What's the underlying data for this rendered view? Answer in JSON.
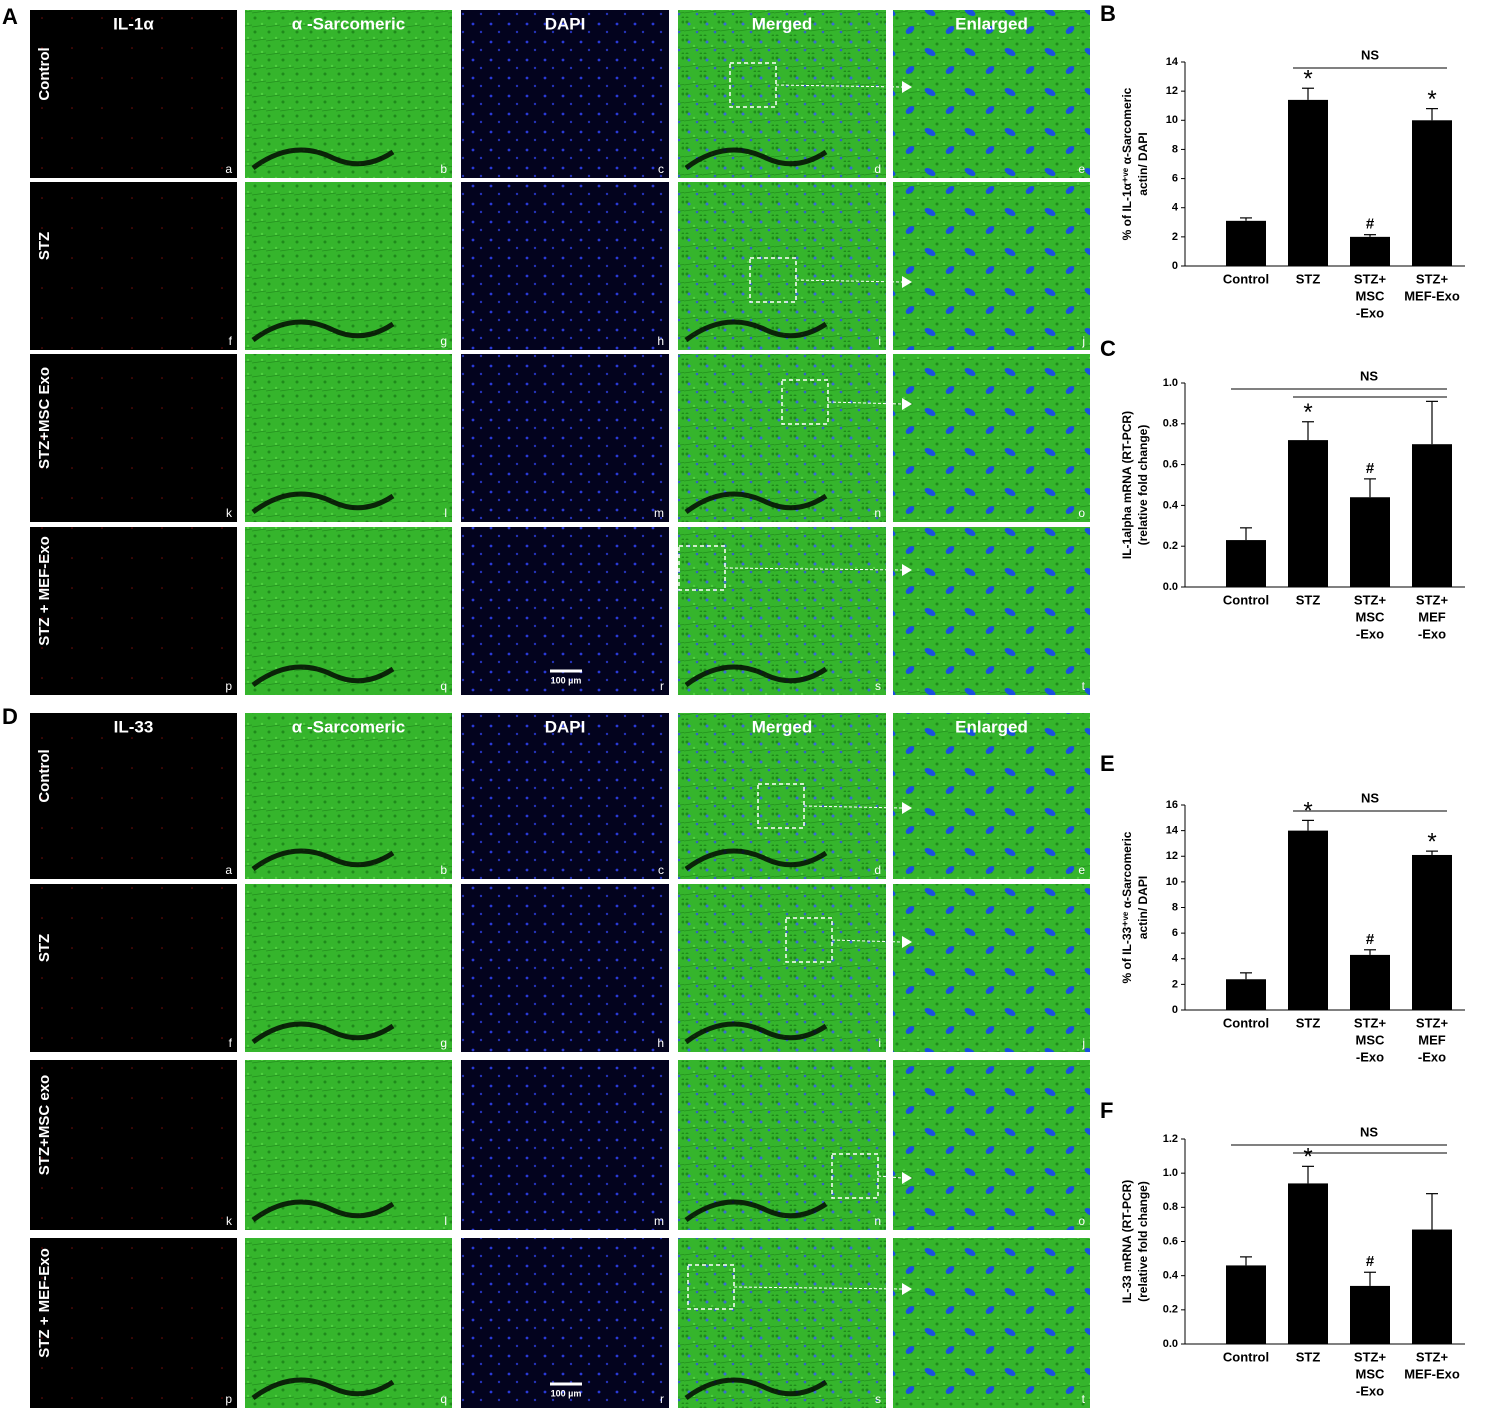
{
  "panels": [
    {
      "label": "A",
      "columns": [
        "IL-1α",
        "α -Sarcomeric",
        "DAPI",
        "Merged",
        "Enlarged"
      ],
      "rows": [
        "Control",
        "STZ",
        "STZ+MSC Exo",
        "STZ + MEF-Exo"
      ],
      "letters": [
        "a",
        "b",
        "c",
        "d",
        "e",
        "f",
        "g",
        "h",
        "i",
        "j",
        "k",
        "l",
        "m",
        "n",
        "o",
        "p",
        "q",
        "r",
        "s",
        "t"
      ],
      "scale_bar": "100 µm"
    },
    {
      "label": "D",
      "columns": [
        "IL-33",
        "α -Sarcomeric",
        "DAPI",
        "Merged",
        "Enlarged"
      ],
      "rows": [
        "Control",
        "STZ",
        "STZ+MSC exo",
        "STZ + MEF-Exo"
      ],
      "letters": [
        "a",
        "b",
        "c",
        "d",
        "e",
        "f",
        "g",
        "h",
        "i",
        "j",
        "k",
        "l",
        "m",
        "n",
        "o",
        "p",
        "q",
        "r",
        "s",
        "t"
      ],
      "scale_bar": "100 µm"
    }
  ],
  "chart_data": [
    {
      "type": "bar",
      "label": "B",
      "ylabel": [
        "% of IL-1α⁺ᵛᵉ α-Sarcomeric",
        "actin/ DAPI"
      ],
      "categories": [
        [
          "Control"
        ],
        [
          "STZ"
        ],
        [
          "STZ+",
          "MSC",
          "-Exo"
        ],
        [
          "STZ+",
          "MEF-Exo"
        ]
      ],
      "values": [
        3.1,
        11.4,
        2.0,
        10.0
      ],
      "errors": [
        0.2,
        0.8,
        0.15,
        0.8
      ],
      "color": "#000000",
      "markers": [
        null,
        "*",
        "#",
        "*"
      ],
      "ns_lines": [
        {
          "label": "NS",
          "from": 1,
          "to": 3
        }
      ],
      "ylim": [
        0,
        14
      ],
      "yticks": [
        0,
        2,
        4,
        6,
        8,
        10,
        12,
        14
      ]
    },
    {
      "type": "bar",
      "label": "C",
      "ylabel": [
        "IL-1alpha mRNA (RT-PCR)",
        "(relative fold change)"
      ],
      "categories": [
        [
          "Control"
        ],
        [
          "STZ"
        ],
        [
          "STZ+",
          "MSC",
          "-Exo"
        ],
        [
          "STZ+",
          "MEF",
          "-Exo"
        ]
      ],
      "values": [
        0.23,
        0.72,
        0.44,
        0.7
      ],
      "errors": [
        0.06,
        0.09,
        0.09,
        0.21
      ],
      "color": "#000000",
      "markers": [
        null,
        "*",
        "#",
        null
      ],
      "ns_lines": [
        {
          "label": "NS",
          "from": 0,
          "to": 3
        },
        {
          "from": 1,
          "to": 3
        }
      ],
      "ylim": [
        0,
        1.0
      ],
      "yticks": [
        {
          "value": 0,
          "label": "0.0"
        },
        0.2,
        0.4,
        0.6,
        0.8,
        {
          "value": 1,
          "label": "1.0"
        }
      ]
    },
    {
      "type": "bar",
      "label": "E",
      "ylabel": [
        "% of IL-33⁺ᵛᵉ α-Sarcomeric",
        "actin/ DAPI"
      ],
      "categories": [
        [
          "Control"
        ],
        [
          "STZ"
        ],
        [
          "STZ+",
          "MSC",
          "-Exo"
        ],
        [
          "STZ+",
          "MEF",
          "-Exo"
        ]
      ],
      "values": [
        2.4,
        14.0,
        4.3,
        12.1
      ],
      "errors": [
        0.5,
        0.8,
        0.4,
        0.3
      ],
      "color": "#000000",
      "markers": [
        null,
        "*",
        "#",
        "*"
      ],
      "ns_lines": [
        {
          "label": "NS",
          "from": 1,
          "to": 3
        }
      ],
      "ylim": [
        0,
        16
      ],
      "yticks": [
        0,
        2,
        4,
        6,
        8,
        10,
        12,
        14,
        16
      ]
    },
    {
      "type": "bar",
      "label": "F",
      "ylabel": [
        "IL-33 mRNA (RT-PCR)",
        "(relative fold change)"
      ],
      "categories": [
        [
          "Control"
        ],
        [
          "STZ"
        ],
        [
          "STZ+",
          "MSC",
          "-Exo"
        ],
        [
          "STZ+",
          "MEF-Exo"
        ]
      ],
      "values": [
        0.46,
        0.94,
        0.34,
        0.67
      ],
      "errors": [
        0.05,
        0.1,
        0.08,
        0.21
      ],
      "color": "#000000",
      "markers": [
        null,
        "*",
        "#",
        null
      ],
      "ns_lines": [
        {
          "label": "NS",
          "from": 0,
          "to": 3
        },
        {
          "from": 1,
          "to": 3
        }
      ],
      "ylim": [
        0,
        1.2
      ],
      "yticks": [
        {
          "value": 0,
          "label": "0.0"
        },
        0.2,
        0.4,
        0.6,
        0.8,
        {
          "value": 1,
          "label": "1.0"
        },
        1.2
      ]
    }
  ]
}
